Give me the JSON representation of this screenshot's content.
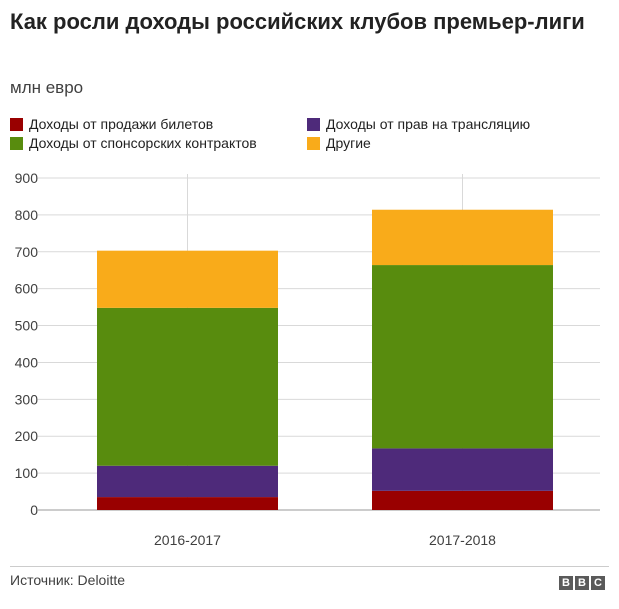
{
  "title": "Как росли доходы российских клубов премьер-лиги",
  "subtitle": "млн евро",
  "legend": [
    {
      "label": "Доходы от продажи билетов",
      "color": "#990000"
    },
    {
      "label": "Доходы от прав на трансляцию",
      "color": "#4e2a7a"
    },
    {
      "label": "Доходы от спонсорских контрактов",
      "color": "#588c0e"
    },
    {
      "label": "Другие",
      "color": "#f9ab1a"
    }
  ],
  "chart_data": {
    "type": "bar",
    "stacked": true,
    "categories": [
      "2016-2017",
      "2017-2018"
    ],
    "series": [
      {
        "name": "Доходы от продажи билетов",
        "values": [
          35,
          52
        ],
        "color": "#990000"
      },
      {
        "name": "Доходы от прав на трансляцию",
        "values": [
          85,
          115
        ],
        "color": "#4e2a7a"
      },
      {
        "name": "Доходы от спонсорских контрактов",
        "values": [
          428,
          497
        ],
        "color": "#588c0e"
      },
      {
        "name": "Другие",
        "values": [
          155,
          150
        ],
        "color": "#f9ab1a"
      }
    ],
    "ylim": [
      0,
      900
    ],
    "yticks": [
      0,
      100,
      200,
      300,
      400,
      500,
      600,
      700,
      800,
      900
    ],
    "grid": true,
    "legend_position": "top"
  },
  "source": "Источник: Deloitte",
  "logo": [
    "B",
    "B",
    "C"
  ]
}
